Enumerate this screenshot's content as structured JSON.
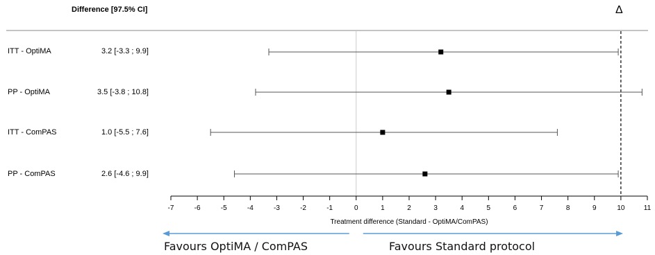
{
  "chart_data": {
    "type": "forest",
    "header": "Difference [97.5% CI]",
    "margin_symbol": "Δ",
    "margin_value": 10,
    "xlabel": "Treatment difference (Standard  - OptiMA/ComPAS)",
    "xlim": [
      -7,
      11
    ],
    "xticks": [
      -7,
      -6,
      -5,
      -4,
      -3,
      -2,
      -1,
      0,
      1,
      2,
      3,
      4,
      5,
      6,
      7,
      8,
      9,
      10,
      11
    ],
    "rows": [
      {
        "label": "ITT - OptiMA",
        "ci_text": "3.2 [-3.3 ; 9.9]",
        "estimate": 3.2,
        "lower": -3.3,
        "upper": 9.9
      },
      {
        "label": "PP - OptiMA",
        "ci_text": "3.5 [-3.8 ; 10.8]",
        "estimate": 3.5,
        "lower": -3.8,
        "upper": 10.8
      },
      {
        "label": "ITT - ComPAS",
        "ci_text": "1.0 [-5.5 ; 7.6]",
        "estimate": 1.0,
        "lower": -5.5,
        "upper": 7.6
      },
      {
        "label": "PP - ComPAS",
        "ci_text": "2.6 [-4.6 ; 9.9]",
        "estimate": 2.6,
        "lower": -4.6,
        "upper": 9.9
      }
    ],
    "favours_left": "Favours OptiMA / ComPAS",
    "favours_right": "Favours Standard protocol",
    "colors": {
      "ci_line": "#555555",
      "point": "#000000",
      "arrow": "#5b9bd5",
      "zero_line": "#cccccc"
    }
  }
}
